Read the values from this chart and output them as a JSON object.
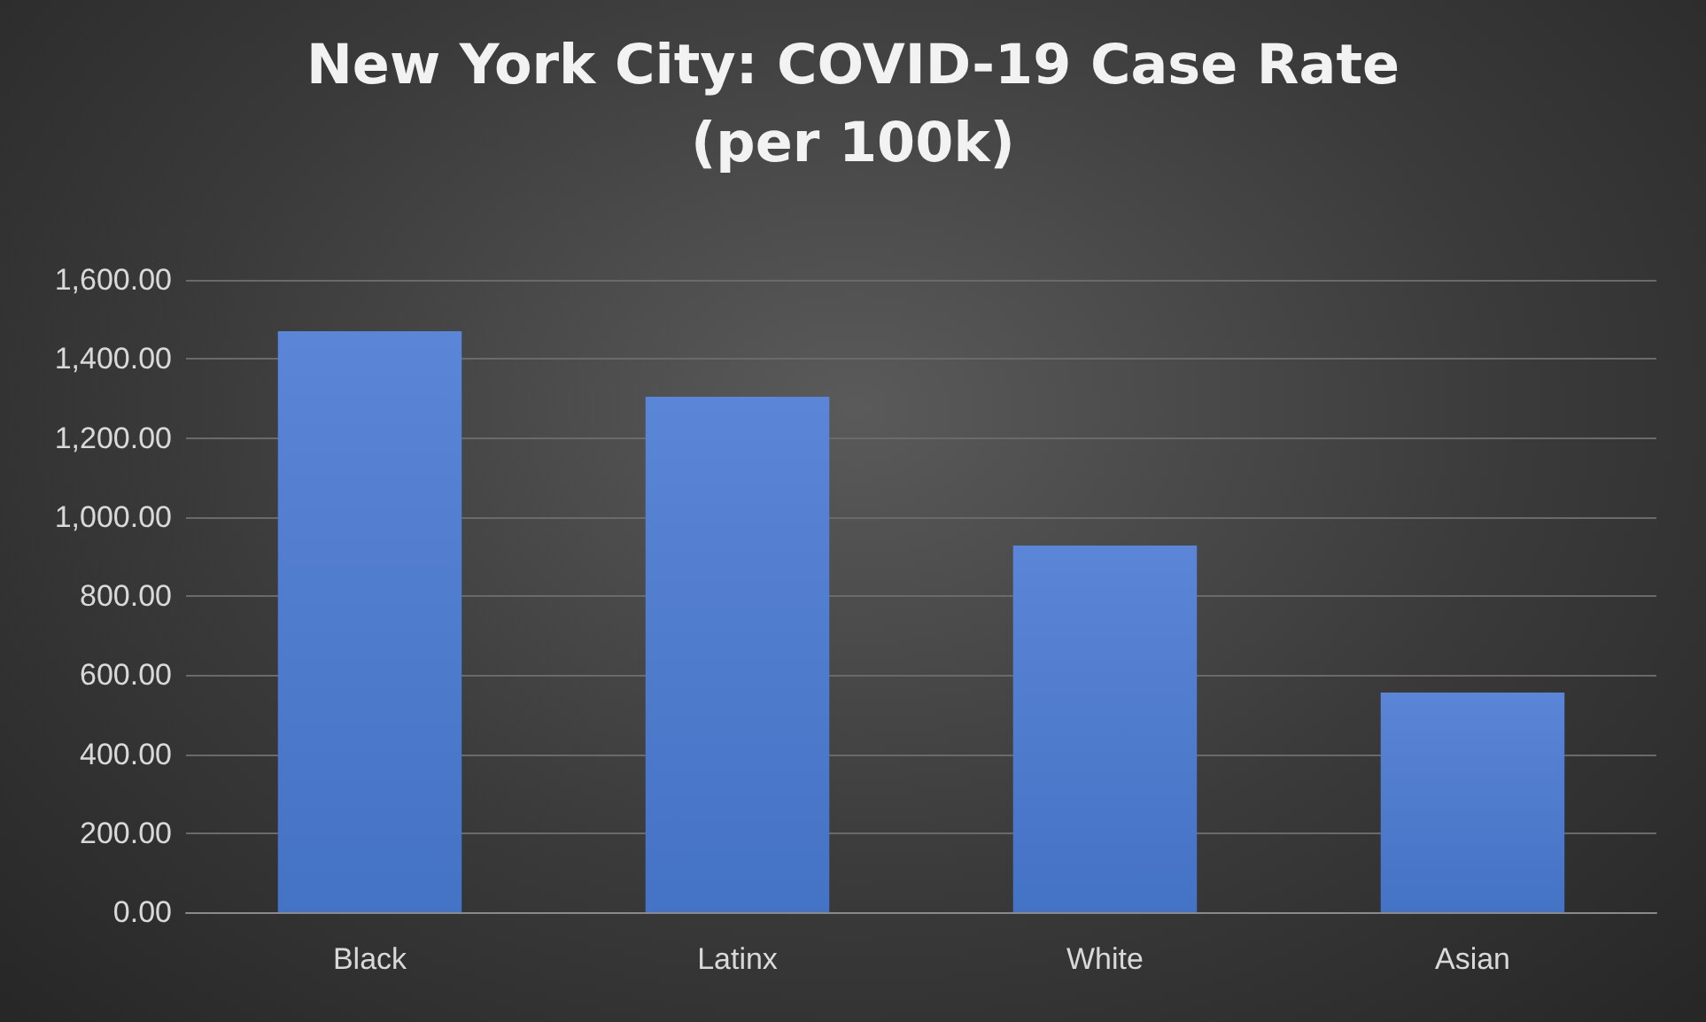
{
  "chart_data": {
    "type": "bar",
    "title": "New York City: COVID-19 Case Rate\n(per 100k)",
    "categories": [
      "Black",
      "Latinx",
      "White",
      "Asian"
    ],
    "values": [
      1470,
      1304,
      928,
      556
    ],
    "color": "#4472c4",
    "ylim": [
      0,
      1600
    ],
    "yticks": [
      {
        "value": 0,
        "label": "0.00"
      },
      {
        "value": 200,
        "label": "200.00"
      },
      {
        "value": 400,
        "label": "400.00"
      },
      {
        "value": 600,
        "label": "600.00"
      },
      {
        "value": 800,
        "label": "800.00"
      },
      {
        "value": 1000,
        "label": "1,000.00"
      },
      {
        "value": 1200,
        "label": "1,200.00"
      },
      {
        "value": 1400,
        "label": "1,400.00"
      },
      {
        "value": 1600,
        "label": "1,600.00"
      }
    ],
    "grid": true
  }
}
